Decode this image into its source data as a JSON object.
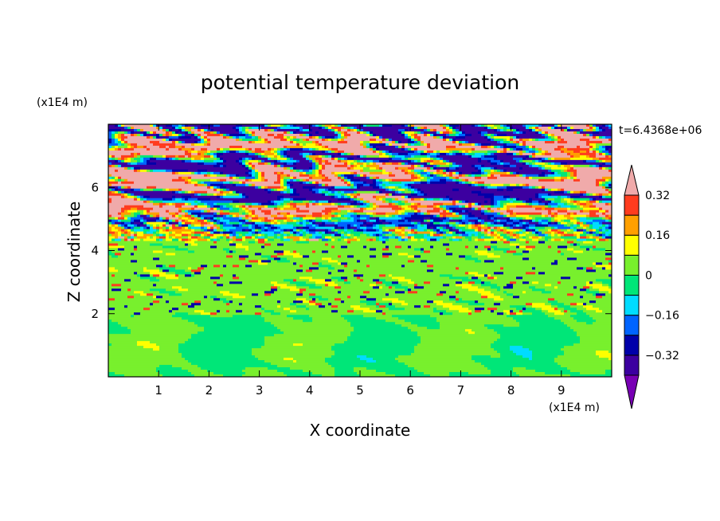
{
  "chart_data": {
    "type": "heatmap",
    "title": "potential temperature deviation",
    "xlabel": "X coordinate",
    "ylabel": "Z coordinate",
    "x_unit": "(x1E4 m)",
    "y_unit": "(x1E4 m)",
    "time_label": "t=6.4368e+06",
    "xlim": [
      0,
      10
    ],
    "ylim": [
      0,
      8
    ],
    "x_ticks": [
      1,
      2,
      3,
      4,
      5,
      6,
      7,
      8,
      9
    ],
    "y_ticks": [
      2,
      4,
      6
    ],
    "colorbar": {
      "levels": [
        -0.4,
        -0.32,
        -0.24,
        -0.16,
        -0.08,
        0,
        0.08,
        0.16,
        0.24,
        0.32,
        0.4
      ],
      "tick_labels": [
        "0.32",
        "0.16",
        "0",
        "−0.16",
        "−0.32"
      ],
      "tick_values": [
        0.32,
        0.16,
        0,
        -0.16,
        -0.32
      ],
      "colors": [
        "#7800b4",
        "#3c00a0",
        "#0000aa",
        "#0064ff",
        "#00dcff",
        "#00e678",
        "#78f02d",
        "#ffff00",
        "#ffa000",
        "#ff3c1e",
        "#f0aaaa"
      ],
      "extend": "both"
    },
    "layers": [
      {
        "z_range": [
          0,
          2
        ],
        "description_value": 0.0,
        "dominant": "near-zero",
        "pattern": "cellular convection"
      },
      {
        "z_range": [
          2,
          4.3
        ],
        "description_value": 0.0,
        "dominant": "near-zero"
      },
      {
        "z_range": [
          4.3,
          8
        ],
        "description_value": 0.4,
        "dominant": "alternating bands",
        "pattern": "layered"
      }
    ]
  }
}
